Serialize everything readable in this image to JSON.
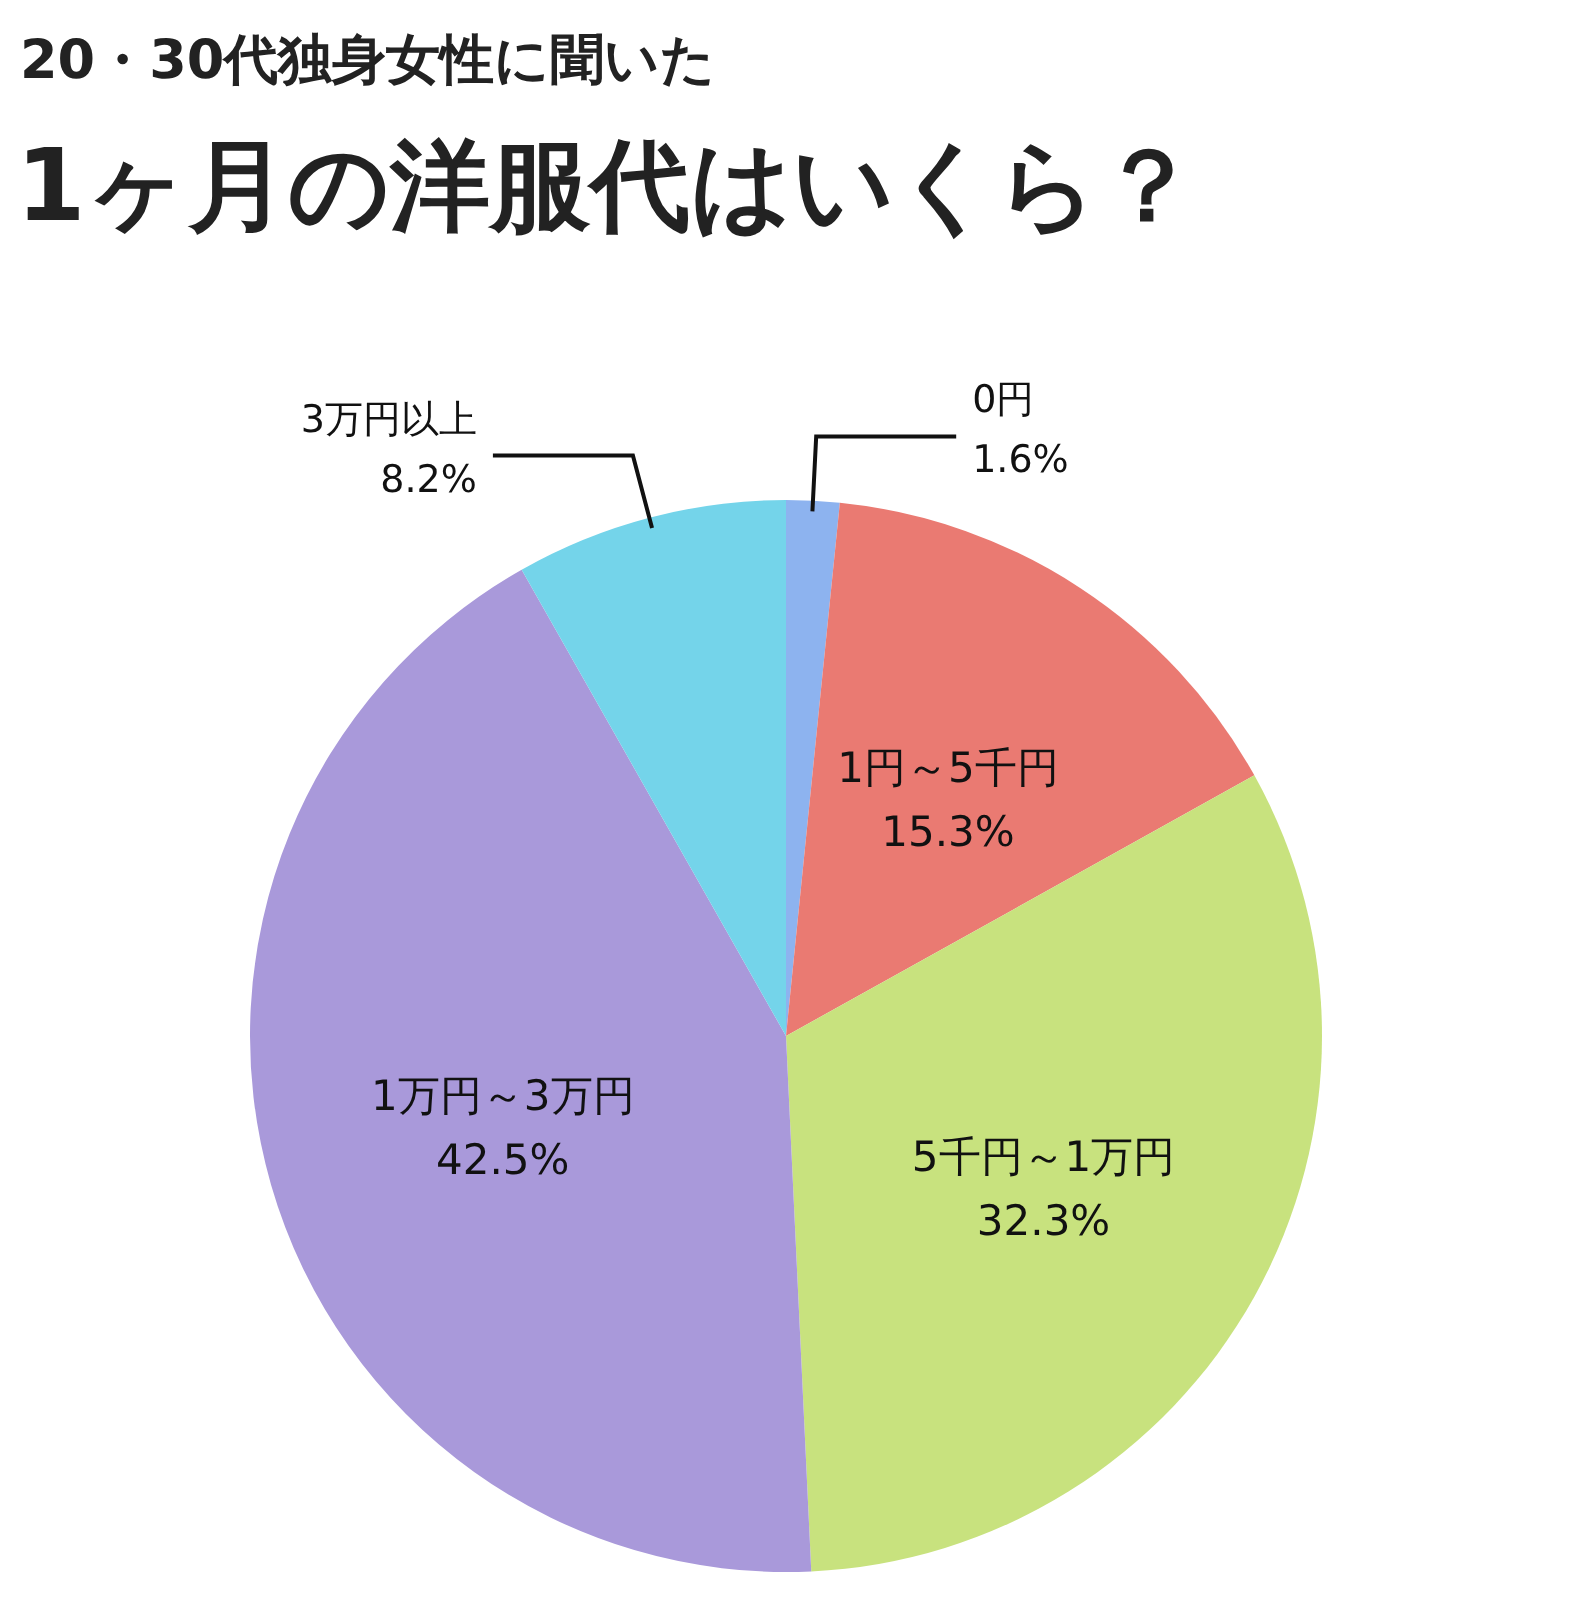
{
  "chart_data": {
    "type": "pie",
    "title": "20・30代独身女性に聞いた",
    "subtitle": "1ヶ月の洋服代はいくら？",
    "categories": [
      "0円",
      "1円～5千円",
      "5千円～1万円",
      "1万円～3万円",
      "3万円以上"
    ],
    "values": [
      1.6,
      15.3,
      32.3,
      42.5,
      8.2
    ],
    "value_labels": [
      "1.6%",
      "15.3%",
      "32.3%",
      "42.5%",
      "8.2%"
    ],
    "colors": [
      "#8db3ef",
      "#ea7a72",
      "#c8e27e",
      "#a999da",
      "#74d4ea"
    ],
    "legend": false
  }
}
